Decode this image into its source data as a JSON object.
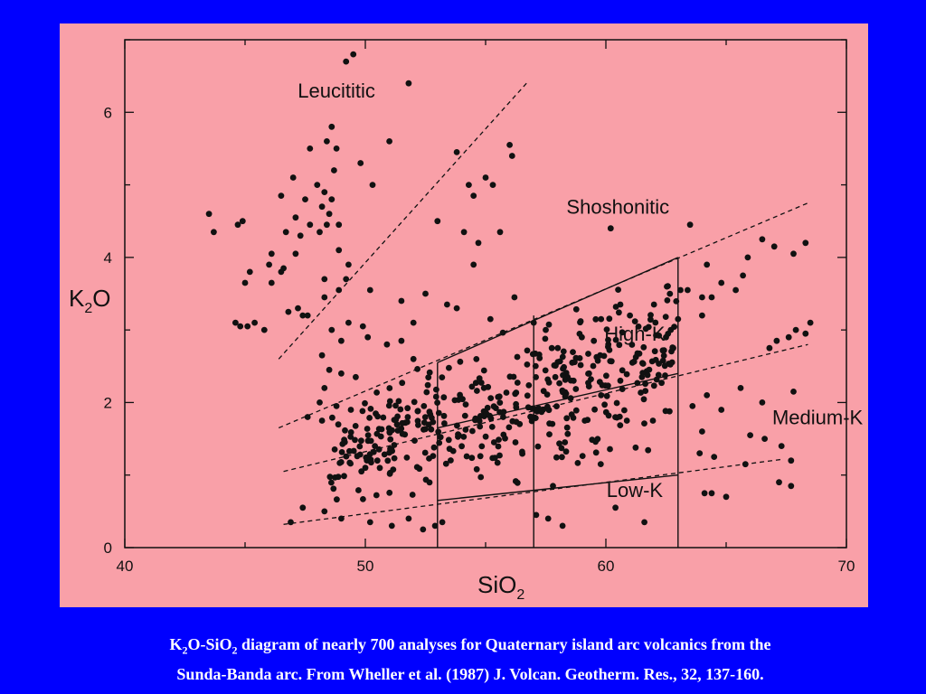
{
  "chart_data": {
    "type": "scatter",
    "xlabel": {
      "main": "SiO",
      "sub": "2"
    },
    "ylabel": {
      "main": "K",
      "sub": "2",
      "tail": "O"
    },
    "xlim": [
      40,
      70
    ],
    "ylim": [
      0,
      7
    ],
    "x_ticks": [
      40,
      50,
      60,
      70
    ],
    "y_ticks": [
      0,
      2,
      4,
      6
    ],
    "grid": false,
    "regions": [
      {
        "name": "Leucititic",
        "x": 48.8,
        "y": 6.2
      },
      {
        "name": "Shoshonitic",
        "x": 60.5,
        "y": 4.6
      },
      {
        "name": "High-K",
        "x": 61.2,
        "y": 2.85
      },
      {
        "name": "Medium-K",
        "x": 68.8,
        "y": 1.7
      },
      {
        "name": "Low-K",
        "x": 61.2,
        "y": 0.7
      }
    ],
    "boundaries": {
      "dashed": [
        [
          [
            46.4,
            2.6
          ],
          [
            56.7,
            6.4
          ]
        ],
        [
          [
            46.4,
            1.65
          ],
          [
            68.4,
            4.75
          ]
        ],
        [
          [
            46.6,
            1.05
          ],
          [
            68.4,
            2.8
          ]
        ],
        [
          [
            46.6,
            0.32
          ],
          [
            67.4,
            1.22
          ]
        ]
      ],
      "solid": [
        [
          [
            53.0,
            2.55
          ],
          [
            63.0,
            4.0
          ]
        ],
        [
          [
            53.0,
            1.65
          ],
          [
            63.0,
            2.4
          ]
        ],
        [
          [
            53.0,
            0.65
          ],
          [
            63.0,
            1.0
          ]
        ],
        [
          [
            53.0,
            0.0
          ],
          [
            53.0,
            2.55
          ]
        ],
        [
          [
            57.0,
            0.0
          ],
          [
            57.0,
            3.2
          ]
        ],
        [
          [
            63.0,
            0.0
          ],
          [
            63.0,
            4.0
          ]
        ]
      ]
    },
    "points": [
      [
        49.2,
        6.7
      ],
      [
        49.5,
        6.8
      ],
      [
        51.8,
        6.4
      ],
      [
        48.6,
        5.8
      ],
      [
        48.4,
        5.6
      ],
      [
        48.8,
        5.5
      ],
      [
        47.7,
        5.5
      ],
      [
        51.0,
        5.6
      ],
      [
        49.8,
        5.3
      ],
      [
        48.7,
        5.2
      ],
      [
        47.0,
        5.1
      ],
      [
        48.0,
        5.0
      ],
      [
        48.3,
        4.9
      ],
      [
        48.6,
        4.8
      ],
      [
        48.2,
        4.7
      ],
      [
        47.5,
        4.8
      ],
      [
        46.5,
        4.85
      ],
      [
        48.5,
        4.6
      ],
      [
        48.4,
        4.45
      ],
      [
        48.9,
        4.45
      ],
      [
        47.1,
        4.55
      ],
      [
        47.7,
        4.45
      ],
      [
        46.7,
        4.35
      ],
      [
        48.1,
        4.35
      ],
      [
        50.3,
        5.0
      ],
      [
        43.5,
        4.6
      ],
      [
        43.7,
        4.35
      ],
      [
        44.7,
        4.45
      ],
      [
        44.9,
        4.5
      ],
      [
        46.1,
        4.05
      ],
      [
        46.6,
        3.85
      ],
      [
        47.1,
        4.05
      ],
      [
        47.3,
        4.3
      ],
      [
        48.9,
        4.1
      ],
      [
        46.0,
        3.9
      ],
      [
        49.3,
        3.9
      ],
      [
        49.2,
        3.7
      ],
      [
        45.2,
        3.8
      ],
      [
        45.0,
        3.65
      ],
      [
        46.5,
        3.8
      ],
      [
        48.3,
        3.7
      ],
      [
        46.1,
        3.65
      ],
      [
        48.9,
        3.55
      ],
      [
        50.2,
        3.55
      ],
      [
        48.3,
        3.45
      ],
      [
        51.5,
        3.4
      ],
      [
        52.5,
        3.5
      ],
      [
        47.2,
        3.3
      ],
      [
        47.6,
        3.2
      ],
      [
        46.8,
        3.25
      ],
      [
        48.6,
        3.0
      ],
      [
        44.6,
        3.1
      ],
      [
        44.8,
        3.05
      ],
      [
        45.1,
        3.05
      ],
      [
        45.4,
        3.1
      ],
      [
        45.8,
        3.0
      ],
      [
        47.4,
        3.2
      ],
      [
        49.3,
        3.1
      ],
      [
        49.9,
        3.05
      ],
      [
        50.1,
        2.9
      ],
      [
        49.0,
        2.85
      ],
      [
        48.2,
        2.65
      ],
      [
        50.9,
        2.8
      ],
      [
        51.5,
        2.85
      ],
      [
        52.0,
        2.6
      ],
      [
        48.5,
        2.45
      ],
      [
        49.0,
        2.4
      ],
      [
        48.3,
        2.2
      ],
      [
        49.6,
        2.35
      ],
      [
        48.1,
        2.0
      ],
      [
        48.8,
        1.95
      ],
      [
        49.4,
        1.9
      ],
      [
        47.6,
        1.8
      ],
      [
        48.2,
        1.75
      ],
      [
        53.8,
        5.45
      ],
      [
        54.3,
        5.0
      ],
      [
        55.0,
        5.1
      ],
      [
        55.3,
        5.0
      ],
      [
        56.0,
        5.55
      ],
      [
        56.1,
        5.4
      ],
      [
        54.5,
        4.85
      ],
      [
        53.0,
        4.5
      ],
      [
        54.1,
        4.35
      ],
      [
        54.7,
        4.2
      ],
      [
        55.6,
        4.35
      ],
      [
        53.4,
        3.35
      ],
      [
        52.0,
        3.1
      ],
      [
        53.8,
        3.3
      ],
      [
        55.2,
        3.15
      ],
      [
        56.2,
        3.45
      ],
      [
        54.5,
        3.9
      ],
      [
        57.0,
        3.1
      ],
      [
        57.5,
        3.0
      ],
      [
        59.8,
        3.15
      ],
      [
        60.2,
        4.4
      ],
      [
        60.6,
        3.35
      ],
      [
        61.0,
        3.2
      ],
      [
        62.0,
        3.35
      ],
      [
        62.5,
        2.9
      ],
      [
        62.7,
        3.0
      ],
      [
        63.0,
        3.15
      ],
      [
        63.1,
        3.55
      ],
      [
        63.4,
        3.55
      ],
      [
        62.8,
        2.75
      ],
      [
        63.5,
        4.45
      ],
      [
        64.0,
        3.45
      ],
      [
        64.4,
        3.45
      ],
      [
        64.2,
        3.9
      ],
      [
        64.8,
        3.65
      ],
      [
        65.4,
        3.55
      ],
      [
        65.7,
        3.75
      ],
      [
        65.9,
        4.0
      ],
      [
        66.5,
        4.25
      ],
      [
        67.0,
        4.15
      ],
      [
        67.8,
        4.05
      ],
      [
        68.3,
        4.2
      ],
      [
        64.0,
        3.2
      ],
      [
        66.8,
        2.75
      ],
      [
        67.1,
        2.85
      ],
      [
        67.6,
        2.9
      ],
      [
        67.9,
        3.0
      ],
      [
        68.3,
        2.95
      ],
      [
        68.5,
        3.1
      ],
      [
        65.6,
        2.2
      ],
      [
        66.5,
        2.0
      ],
      [
        67.8,
        2.15
      ],
      [
        64.2,
        2.1
      ],
      [
        64.8,
        1.9
      ],
      [
        63.6,
        1.95
      ],
      [
        64.0,
        1.6
      ],
      [
        66.0,
        1.55
      ],
      [
        66.6,
        1.5
      ],
      [
        67.3,
        1.4
      ],
      [
        67.7,
        1.2
      ],
      [
        65.8,
        1.15
      ],
      [
        64.5,
        1.25
      ],
      [
        63.9,
        1.3
      ],
      [
        64.1,
        0.75
      ],
      [
        64.4,
        0.75
      ],
      [
        65.0,
        0.7
      ],
      [
        67.2,
        0.9
      ],
      [
        67.7,
        0.85
      ],
      [
        59.0,
        2.9
      ],
      [
        59.5,
        2.85
      ],
      [
        58.0,
        2.75
      ],
      [
        60.1,
        2.8
      ],
      [
        61.1,
        2.55
      ],
      [
        58.6,
        2.55
      ],
      [
        59.3,
        2.4
      ],
      [
        57.9,
        2.35
      ],
      [
        60.6,
        2.3
      ],
      [
        61.5,
        2.35
      ],
      [
        59.8,
        2.1
      ],
      [
        57.8,
        0.85
      ],
      [
        57.6,
        0.4
      ],
      [
        58.2,
        0.3
      ],
      [
        60.4,
        0.55
      ],
      [
        61.6,
        0.35
      ],
      [
        57.1,
        0.45
      ],
      [
        46.9,
        0.35
      ],
      [
        47.4,
        0.55
      ],
      [
        48.3,
        0.5
      ],
      [
        49.0,
        0.4
      ],
      [
        50.2,
        0.35
      ],
      [
        51.1,
        0.3
      ],
      [
        51.8,
        0.4
      ],
      [
        52.4,
        0.25
      ],
      [
        52.9,
        0.3
      ],
      [
        53.2,
        0.35
      ],
      [
        50.5,
        1.2
      ],
      [
        50.4,
        1.4
      ],
      [
        50.0,
        1.1
      ]
    ],
    "cloud": {
      "count": 420,
      "xmin": 48.5,
      "xmax": 63.0
    }
  },
  "caption": {
    "pre": "K",
    "sub1": "2",
    "mid": "O-SiO",
    "sub2": "2",
    "line1_rest": " diagram of nearly 700 analyses for Quaternary island arc volcanics from the",
    "line2": "Sunda-Banda arc. From Wheller et al. (1987) J. Volcan. Geotherm. Res., 32, 137-160."
  },
  "colors": {
    "background": "#0000ff",
    "panel": "#f9a0a8",
    "ink": "#111111",
    "caption": "#ffffff"
  }
}
